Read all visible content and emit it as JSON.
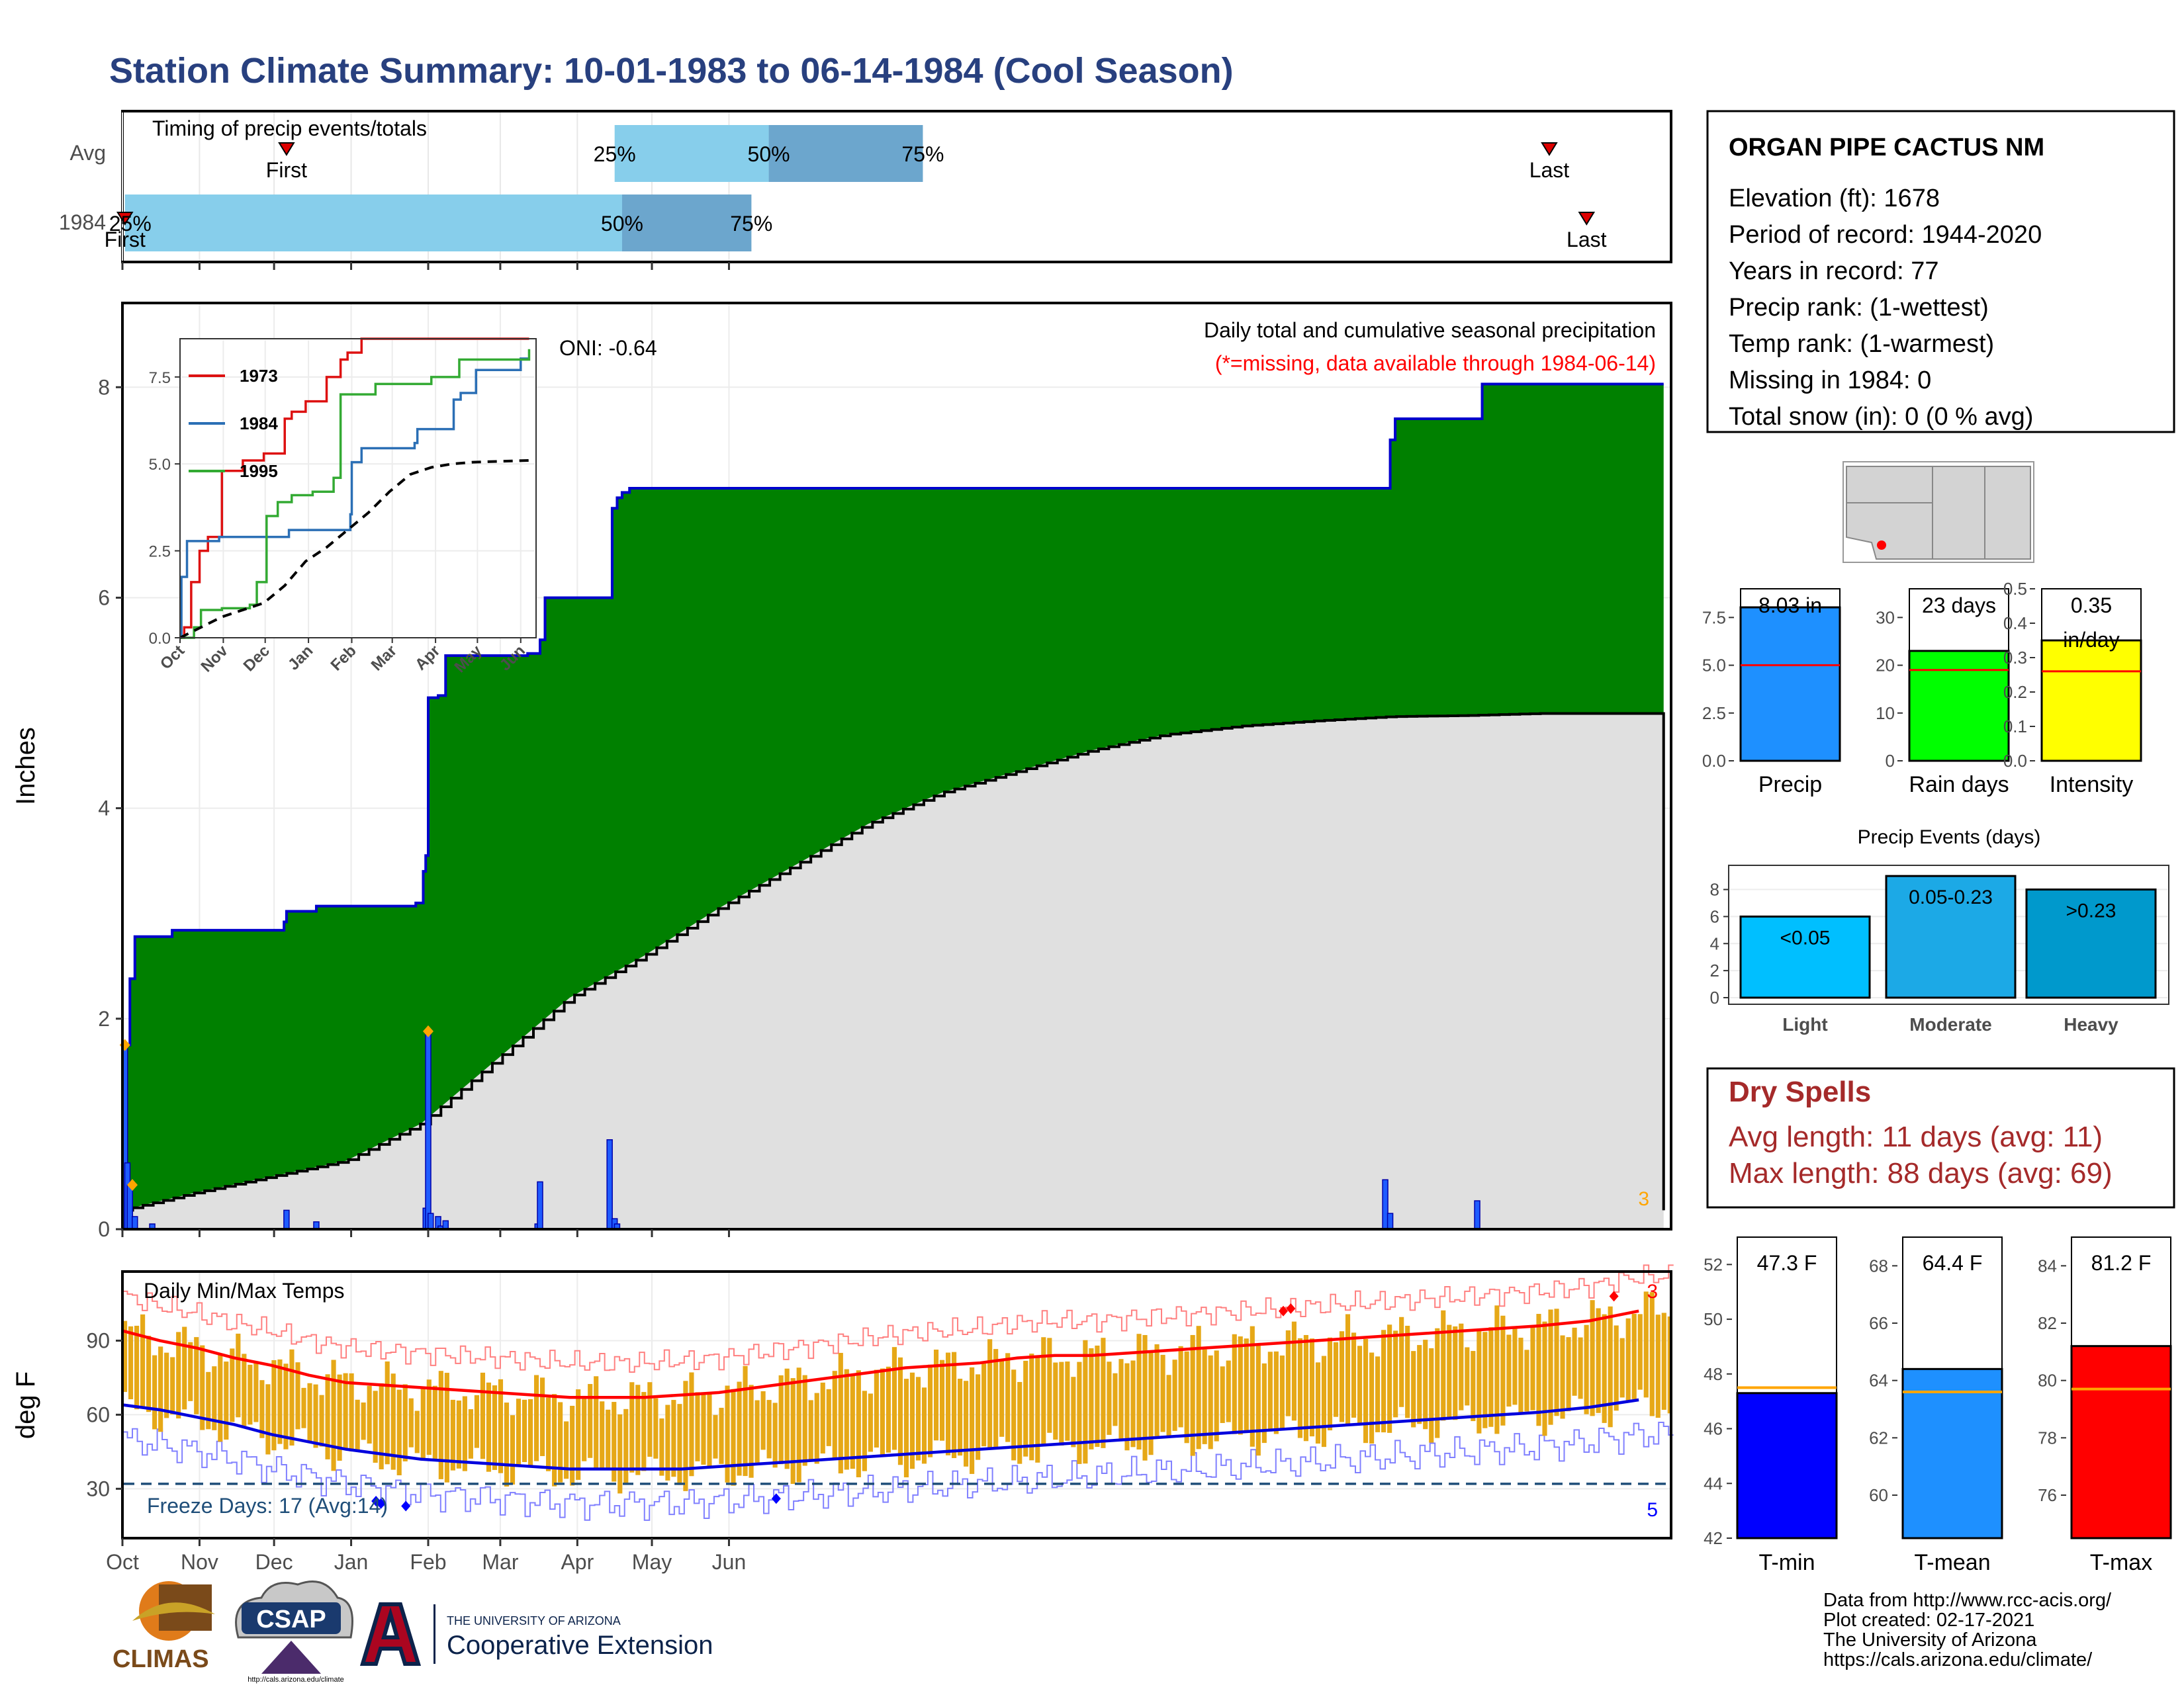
{
  "title": "Station Climate Summary: 10-01-1983 to 06-14-1984 (Cool Season)",
  "colors": {
    "title": "#28407f",
    "cum_fill": "#008000",
    "cum_line": "#0000cc",
    "avg_fill": "#e0e0e0",
    "temp_bar": "#e6a817",
    "tmax_avg": "#ff0000",
    "tmin_avg": "#0000dd",
    "record_hi": "#ff8080",
    "record_lo": "#8080ff",
    "light_blue": "#87ceeb",
    "mid_blue": "#6ca6cd",
    "dry_spell": "#a52a2a",
    "freeze": "#1f4e79",
    "missing": "#ff0000",
    "orange": "#ffa500"
  },
  "timing_panel": {
    "title": "Timing of precip events/totals",
    "rows": [
      {
        "label": "Avg",
        "first": "First",
        "last": "Last",
        "p25": "25%",
        "p50": "50%",
        "p75": "75%",
        "first_day": 66,
        "p25_day": 198,
        "p50_day": 260,
        "p75_day": 322,
        "last_day": 574
      },
      {
        "label": "1984",
        "first": "First",
        "last": "Last",
        "p25": "25%",
        "p50": "50%",
        "p75": "75%",
        "first_day": 1,
        "p25_day": 1,
        "p50_day": 201,
        "p75_day": 253,
        "last_day": 589
      }
    ]
  },
  "precip_panel": {
    "ylabel": "Inches",
    "yticks": [
      "0",
      "2",
      "4",
      "6",
      "8"
    ],
    "note1": "Daily total and cumulative seasonal precipitation",
    "note2": "(*=missing, data available through 1984-06-14)",
    "oni": "ONI: -0.64",
    "corner_count": "3"
  },
  "inset": {
    "yticks": [
      "0.0",
      "2.5",
      "5.0",
      "7.5"
    ],
    "xticks": [
      "Oct",
      "Nov",
      "Dec",
      "Jan",
      "Feb",
      "Mar",
      "Apr",
      "May",
      "Jun"
    ],
    "legend": [
      {
        "name": "1973",
        "color": "#dd1111"
      },
      {
        "name": "1984",
        "color": "#2b6fb5"
      },
      {
        "name": "1995",
        "color": "#33aa33"
      }
    ]
  },
  "temp_panel": {
    "title": "Daily Min/Max Temps",
    "ylabel": "deg F",
    "yticks": [
      "30",
      "60",
      "90"
    ],
    "freeze_label": "Freeze Days: 17 (Avg:14)",
    "corner_hi": "3",
    "corner_lo": "5"
  },
  "months": [
    "Oct",
    "Nov",
    "Dec",
    "Jan",
    "Feb",
    "Mar",
    "Apr",
    "May",
    "Jun"
  ],
  "station": {
    "name": "ORGAN PIPE CACTUS NM",
    "lines": [
      "Elevation (ft): 1678",
      "Period of record: 1944-2020",
      "Years in record: 77",
      "Precip rank:  (1-wettest)",
      "Temp rank:  (1-warmest)",
      "Missing in 1984: 0",
      "Total snow (in): 0 (0 % avg)"
    ]
  },
  "mini_bars": [
    {
      "label": "Precip",
      "value_text": "8.03 in",
      "value": 8.03,
      "avg": 5.0,
      "ymax": 9.0,
      "yticks": [
        "0.0",
        "2.5",
        "5.0",
        "7.5"
      ],
      "tickvals": [
        0,
        2.5,
        5,
        7.5
      ],
      "color": "#1e90ff"
    },
    {
      "label": "Rain days",
      "value_text": "23 days",
      "value": 23,
      "avg": 19,
      "ymax": 36,
      "yticks": [
        "0",
        "10",
        "20",
        "30"
      ],
      "tickvals": [
        0,
        10,
        20,
        30
      ],
      "color": "#00ff00"
    },
    {
      "label": "Intensity",
      "value_text": "0.35",
      "value_text2": "in/day",
      "value": 0.35,
      "avg": 0.26,
      "ymax": 0.5,
      "yticks": [
        "0.0",
        "0.1",
        "0.2",
        "0.3",
        "0.4",
        "0.5"
      ],
      "tickvals": [
        0,
        0.1,
        0.2,
        0.3,
        0.4,
        0.5
      ],
      "color": "#ffff00"
    }
  ],
  "events": {
    "title": "Precip Events (days)",
    "yticks": [
      "0",
      "2",
      "4",
      "6",
      "8"
    ],
    "bars": [
      {
        "label": "Light",
        "range": "<0.05",
        "value": 6,
        "color": "#00bfff"
      },
      {
        "label": "Moderate",
        "range": "0.05-0.23",
        "value": 9,
        "color": "#1ca9e6"
      },
      {
        "label": "Heavy",
        "range": ">0.23",
        "value": 8,
        "color": "#0099cc"
      }
    ]
  },
  "dry_spells": {
    "title": "Dry Spells",
    "avg": "Avg length: 11 days (avg: 11)",
    "max": "Max length: 88 days (avg: 69)"
  },
  "temp_bars": [
    {
      "label": "T-min",
      "value_text": "47.3 F",
      "value": 47.3,
      "avg": 47.5,
      "ymin": 42,
      "ymax": 53,
      "yticks": [
        "42",
        "44",
        "46",
        "48",
        "50",
        "52"
      ],
      "tickvals": [
        42,
        44,
        46,
        48,
        50,
        52
      ],
      "color": "#0000ff"
    },
    {
      "label": "T-mean",
      "value_text": "64.4 F",
      "value": 64.4,
      "avg": 63.6,
      "ymin": 58.5,
      "ymax": 69,
      "yticks": [
        "60",
        "62",
        "64",
        "66",
        "68"
      ],
      "tickvals": [
        60,
        62,
        64,
        66,
        68
      ],
      "color": "#1e90ff"
    },
    {
      "label": "T-max",
      "value_text": "81.2 F",
      "value": 81.2,
      "avg": 79.7,
      "ymin": 74.5,
      "ymax": 85,
      "yticks": [
        "76",
        "78",
        "80",
        "82",
        "84"
      ],
      "tickvals": [
        76,
        78,
        80,
        82,
        84
      ],
      "color": "#ff0000"
    }
  ],
  "footer": {
    "lines": [
      "Data from http://www.rcc-acis.org/",
      "Plot created: 02-17-2021",
      "The University of Arizona",
      "https://cals.arizona.edu/climate/"
    ]
  },
  "logos": {
    "climas": "CLIMAS",
    "csap": "CSAP",
    "csap_url": "http://cals.arizona.edu/climate",
    "ua_line1": "THE UNIVERSITY OF ARIZONA",
    "ua_line2": "Cooperative Extension"
  },
  "chart_data": {
    "type": "area",
    "title": "Daily total and cumulative seasonal precipitation",
    "ylabel": "Inches",
    "ylim": [
      0,
      8.8
    ],
    "x_unit": "days since Oct 1",
    "cumulative_1984": [
      [
        0,
        0
      ],
      [
        1,
        1.75
      ],
      [
        3,
        2.38
      ],
      [
        5,
        2.78
      ],
      [
        20,
        2.84
      ],
      [
        28,
        2.84
      ],
      [
        65,
        2.92
      ],
      [
        66,
        3.02
      ],
      [
        77,
        3.02
      ],
      [
        78,
        3.07
      ],
      [
        117,
        3.07
      ],
      [
        118,
        3.1
      ],
      [
        121,
        3.4
      ],
      [
        122,
        3.55
      ],
      [
        123,
        5.05
      ],
      [
        127,
        5.07
      ],
      [
        130,
        5.45
      ],
      [
        163,
        5.47
      ],
      [
        168,
        5.6
      ],
      [
        170,
        6.0
      ],
      [
        195,
        6.0
      ],
      [
        197,
        6.85
      ],
      [
        199,
        6.95
      ],
      [
        201,
        7.0
      ],
      [
        204,
        7.04
      ],
      [
        507,
        7.04
      ],
      [
        510,
        7.5
      ],
      [
        512,
        7.7
      ],
      [
        544,
        7.7
      ],
      [
        547,
        8.03
      ],
      [
        620,
        8.03
      ]
    ],
    "average_cumulative": [
      [
        0,
        0.18
      ],
      [
        30,
        0.35
      ],
      [
        60,
        0.5
      ],
      [
        90,
        0.65
      ],
      [
        120,
        1.0
      ],
      [
        150,
        1.6
      ],
      [
        180,
        2.2
      ],
      [
        210,
        2.6
      ],
      [
        240,
        3.05
      ],
      [
        270,
        3.45
      ],
      [
        300,
        3.85
      ],
      [
        330,
        4.15
      ],
      [
        360,
        4.35
      ],
      [
        390,
        4.55
      ],
      [
        420,
        4.7
      ],
      [
        450,
        4.78
      ],
      [
        480,
        4.83
      ],
      [
        510,
        4.87
      ],
      [
        540,
        4.88
      ],
      [
        570,
        4.9
      ],
      [
        620,
        4.9
      ]
    ],
    "daily_precip": [
      [
        1,
        1.75
      ],
      [
        2,
        0.63
      ],
      [
        3,
        0.42
      ],
      [
        5,
        0.12
      ],
      [
        12,
        0.05
      ],
      [
        66,
        0.18
      ],
      [
        78,
        0.07
      ],
      [
        122,
        0.2
      ],
      [
        123,
        1.88
      ],
      [
        124,
        0.15
      ],
      [
        127,
        0.12
      ],
      [
        128,
        0.03
      ],
      [
        130,
        0.08
      ],
      [
        167,
        0.05
      ],
      [
        168,
        0.45
      ],
      [
        196,
        0.85
      ],
      [
        198,
        0.1
      ],
      [
        199,
        0.05
      ],
      [
        508,
        0.47
      ],
      [
        510,
        0.15
      ],
      [
        545,
        0.27
      ]
    ],
    "inset_series": [
      {
        "name": "1973",
        "points": [
          [
            0,
            0
          ],
          [
            3,
            0.3
          ],
          [
            8,
            1.6
          ],
          [
            14,
            2.5
          ],
          [
            20,
            2.9
          ],
          [
            30,
            4.8
          ],
          [
            45,
            5.1
          ],
          [
            60,
            5.3
          ],
          [
            75,
            6.3
          ],
          [
            80,
            6.5
          ],
          [
            90,
            6.8
          ],
          [
            105,
            7.5
          ],
          [
            115,
            8.0
          ],
          [
            120,
            8.2
          ],
          [
            130,
            8.6
          ],
          [
            160,
            8.6
          ],
          [
            250,
            8.6
          ]
        ]
      },
      {
        "name": "1984",
        "points": [
          [
            0,
            0
          ],
          [
            1,
            1.75
          ],
          [
            5,
            2.78
          ],
          [
            28,
            2.9
          ],
          [
            78,
            3.1
          ],
          [
            122,
            3.55
          ],
          [
            123,
            5.05
          ],
          [
            130,
            5.45
          ],
          [
            168,
            5.6
          ],
          [
            170,
            6.0
          ],
          [
            196,
            6.85
          ],
          [
            201,
            7.04
          ],
          [
            210,
            7.04
          ],
          [
            212,
            7.7
          ],
          [
            244,
            8.03
          ],
          [
            250,
            8.03
          ]
        ]
      },
      {
        "name": "1995",
        "points": [
          [
            0,
            0
          ],
          [
            10,
            0.3
          ],
          [
            15,
            0.8
          ],
          [
            30,
            0.85
          ],
          [
            50,
            0.95
          ],
          [
            55,
            1.6
          ],
          [
            62,
            3.5
          ],
          [
            70,
            3.9
          ],
          [
            80,
            4.1
          ],
          [
            95,
            4.2
          ],
          [
            110,
            4.6
          ],
          [
            115,
            7.0
          ],
          [
            140,
            7.3
          ],
          [
            180,
            7.5
          ],
          [
            200,
            8.0
          ],
          [
            250,
            8.3
          ]
        ]
      },
      {
        "name": "average",
        "points": [
          [
            0,
            0
          ],
          [
            15,
            0.3
          ],
          [
            30,
            0.6
          ],
          [
            45,
            0.8
          ],
          [
            60,
            1.0
          ],
          [
            75,
            1.5
          ],
          [
            90,
            2.2
          ],
          [
            105,
            2.6
          ],
          [
            120,
            3.1
          ],
          [
            135,
            3.6
          ],
          [
            150,
            4.2
          ],
          [
            165,
            4.7
          ],
          [
            180,
            4.9
          ],
          [
            195,
            5.0
          ],
          [
            210,
            5.05
          ],
          [
            250,
            5.1
          ]
        ]
      }
    ],
    "temperature": {
      "ylim": [
        10,
        118
      ],
      "freeze_line": 32,
      "avg_max": [
        [
          0,
          94
        ],
        [
          15,
          90
        ],
        [
          30,
          87
        ],
        [
          45,
          83
        ],
        [
          60,
          80
        ],
        [
          75,
          76
        ],
        [
          90,
          73
        ],
        [
          105,
          72
        ],
        [
          120,
          71
        ],
        [
          135,
          70
        ],
        [
          150,
          69
        ],
        [
          165,
          68
        ],
        [
          180,
          67
        ],
        [
          195,
          67
        ],
        [
          210,
          67
        ],
        [
          225,
          68
        ],
        [
          240,
          69
        ],
        [
          255,
          71
        ],
        [
          270,
          73
        ],
        [
          285,
          75
        ],
        [
          300,
          77
        ],
        [
          315,
          79
        ],
        [
          330,
          80
        ],
        [
          345,
          81
        ],
        [
          360,
          83
        ],
        [
          375,
          84
        ],
        [
          390,
          84
        ],
        [
          405,
          85
        ],
        [
          420,
          86
        ],
        [
          435,
          87
        ],
        [
          450,
          88
        ],
        [
          465,
          89
        ],
        [
          480,
          90
        ],
        [
          495,
          91
        ],
        [
          510,
          92
        ],
        [
          525,
          93
        ],
        [
          540,
          94
        ],
        [
          555,
          95
        ],
        [
          570,
          96
        ],
        [
          580,
          97
        ],
        [
          590,
          98
        ],
        [
          610,
          102
        ]
      ],
      "avg_min": [
        [
          0,
          64
        ],
        [
          15,
          62
        ],
        [
          30,
          59
        ],
        [
          45,
          56
        ],
        [
          60,
          52
        ],
        [
          75,
          49
        ],
        [
          90,
          46
        ],
        [
          105,
          44
        ],
        [
          120,
          42
        ],
        [
          135,
          41
        ],
        [
          150,
          40
        ],
        [
          165,
          39
        ],
        [
          180,
          38
        ],
        [
          195,
          38
        ],
        [
          210,
          38
        ],
        [
          225,
          38
        ],
        [
          240,
          39
        ],
        [
          255,
          40
        ],
        [
          270,
          41
        ],
        [
          285,
          42
        ],
        [
          300,
          43
        ],
        [
          315,
          44
        ],
        [
          330,
          45
        ],
        [
          345,
          46
        ],
        [
          360,
          47
        ],
        [
          375,
          48
        ],
        [
          390,
          49
        ],
        [
          405,
          50
        ],
        [
          420,
          51
        ],
        [
          435,
          52
        ],
        [
          450,
          53
        ],
        [
          465,
          54
        ],
        [
          480,
          55
        ],
        [
          495,
          56
        ],
        [
          510,
          57
        ],
        [
          525,
          58
        ],
        [
          540,
          59
        ],
        [
          555,
          60
        ],
        [
          570,
          61
        ],
        [
          590,
          63
        ],
        [
          610,
          66
        ]
      ]
    }
  }
}
